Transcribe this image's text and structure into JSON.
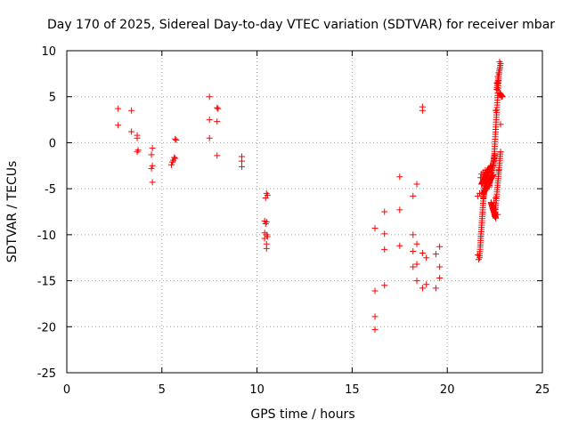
{
  "chart_data": {
    "type": "scatter",
    "title": "Day 170 of 2025, Sidereal Day-to-day VTEC variation (SDTVAR) for receiver mbar",
    "xlabel": "GPS time / hours",
    "ylabel": "SDTVAR / TECUs",
    "xlim": [
      0,
      25
    ],
    "ylim": [
      -25,
      10
    ],
    "xticks": [
      0,
      5,
      10,
      15,
      20,
      25
    ],
    "yticks": [
      10,
      5,
      0,
      -5,
      -10,
      -15,
      -20,
      -25
    ],
    "xtick_labels": [
      "0",
      "5",
      "10",
      "15",
      "20",
      "25"
    ],
    "ytick_labels": [
      "10",
      "5",
      "0",
      "-5",
      "-10",
      "-15",
      "-20",
      "-25"
    ],
    "grid": true,
    "marker": "plus",
    "color": "#ff0000",
    "series": [
      {
        "name": "SDTVAR",
        "points": [
          [
            2.7,
            3.7
          ],
          [
            2.7,
            1.9
          ],
          [
            3.4,
            3.5
          ],
          [
            3.4,
            1.2
          ],
          [
            3.7,
            0.8
          ],
          [
            3.7,
            0.5
          ],
          [
            3.75,
            -0.8
          ],
          [
            3.7,
            -1.0
          ],
          [
            4.5,
            -0.6
          ],
          [
            4.45,
            -1.3
          ],
          [
            4.5,
            -2.5
          ],
          [
            4.45,
            -2.8
          ],
          [
            4.5,
            -4.3
          ],
          [
            5.5,
            -2.4
          ],
          [
            5.55,
            -2.1
          ],
          [
            5.6,
            -1.9
          ],
          [
            5.65,
            -1.6
          ],
          [
            5.7,
            -1.7
          ],
          [
            5.75,
            0.3
          ],
          [
            5.7,
            0.4
          ],
          [
            7.5,
            5.0
          ],
          [
            7.5,
            2.5
          ],
          [
            7.5,
            0.5
          ],
          [
            7.9,
            3.8
          ],
          [
            7.95,
            3.7
          ],
          [
            7.9,
            2.3
          ],
          [
            7.9,
            -1.4
          ],
          [
            9.2,
            -1.5
          ],
          [
            9.2,
            -2.0
          ],
          [
            9.2,
            -2.6
          ],
          [
            10.4,
            -8.5
          ],
          [
            10.45,
            -8.8
          ],
          [
            10.5,
            -8.6
          ],
          [
            10.5,
            -5.5
          ],
          [
            10.55,
            -5.7
          ],
          [
            10.45,
            -6.0
          ],
          [
            10.4,
            -9.8
          ],
          [
            10.5,
            -10.0
          ],
          [
            10.55,
            -10.2
          ],
          [
            10.4,
            -10.4
          ],
          [
            10.5,
            -11.0
          ],
          [
            10.5,
            -11.5
          ],
          [
            16.2,
            -9.3
          ],
          [
            16.2,
            -16.1
          ],
          [
            16.2,
            -18.9
          ],
          [
            16.2,
            -20.3
          ],
          [
            16.7,
            -7.5
          ],
          [
            16.7,
            -9.9
          ],
          [
            16.7,
            -11.6
          ],
          [
            16.7,
            -15.5
          ],
          [
            17.5,
            -3.7
          ],
          [
            17.5,
            -7.3
          ],
          [
            17.5,
            -11.2
          ],
          [
            18.2,
            -5.8
          ],
          [
            18.2,
            -10.0
          ],
          [
            18.2,
            -11.8
          ],
          [
            18.2,
            -13.5
          ],
          [
            18.4,
            -4.5
          ],
          [
            18.4,
            -11.0
          ],
          [
            18.4,
            -13.2
          ],
          [
            18.4,
            -15.0
          ],
          [
            18.7,
            3.9
          ],
          [
            18.7,
            3.5
          ],
          [
            18.7,
            -12.0
          ],
          [
            18.7,
            -15.8
          ],
          [
            18.9,
            -12.5
          ],
          [
            18.9,
            -15.4
          ],
          [
            19.4,
            -12.1
          ],
          [
            19.4,
            -15.8
          ],
          [
            19.6,
            -11.3
          ],
          [
            19.6,
            -13.5
          ],
          [
            19.6,
            -14.7
          ],
          [
            21.6,
            -12.2
          ],
          [
            21.65,
            -12.7
          ],
          [
            21.7,
            -12.5
          ],
          [
            21.6,
            -5.8
          ],
          [
            21.7,
            -5.5
          ],
          [
            21.75,
            -3.8
          ],
          [
            21.8,
            -3.4
          ],
          [
            21.9,
            -3.2
          ],
          [
            22.0,
            -3.6
          ],
          [
            22.1,
            -3.0
          ],
          [
            22.2,
            -3.3
          ],
          [
            22.3,
            -2.9
          ],
          [
            22.4,
            -2.5
          ],
          [
            22.5,
            -1.7
          ],
          [
            22.55,
            3.5
          ],
          [
            22.6,
            6.5
          ],
          [
            22.65,
            7.2
          ],
          [
            22.7,
            7.6
          ],
          [
            22.75,
            8.8
          ],
          [
            22.75,
            8.0
          ],
          [
            22.8,
            5.2
          ],
          [
            22.85,
            5.0
          ],
          [
            22.8,
            2.0
          ],
          [
            22.45,
            -6.5
          ],
          [
            22.5,
            -7.2
          ],
          [
            22.5,
            -8.0
          ],
          [
            22.65,
            -7.8
          ],
          [
            22.55,
            -6.0
          ],
          [
            22.8,
            -1.0
          ],
          [
            22.7,
            -3.0
          ]
        ]
      }
    ],
    "dense_segments": [
      {
        "x_start": 21.7,
        "x_end": 22.0,
        "y_start": -12.3,
        "y_end": -3.0,
        "count": 40
      },
      {
        "x_start": 21.8,
        "x_end": 22.3,
        "y_start": -4.5,
        "y_end": -2.5,
        "count": 40
      },
      {
        "x_start": 21.9,
        "x_end": 22.4,
        "y_start": -5.5,
        "y_end": -3.5,
        "count": 30
      },
      {
        "x_start": 22.2,
        "x_end": 22.5,
        "y_start": -4.8,
        "y_end": -1.2,
        "count": 25
      },
      {
        "x_start": 22.3,
        "x_end": 22.55,
        "y_start": -6.5,
        "y_end": -8.2,
        "count": 20
      },
      {
        "x_start": 22.45,
        "x_end": 22.7,
        "y_start": -2.0,
        "y_end": 7.0,
        "count": 35
      },
      {
        "x_start": 22.5,
        "x_end": 22.8,
        "y_start": -8.0,
        "y_end": -1.0,
        "count": 30
      },
      {
        "x_start": 22.6,
        "x_end": 22.8,
        "y_start": 5.8,
        "y_end": 8.6,
        "count": 15
      },
      {
        "x_start": 22.75,
        "x_end": 22.9,
        "y_start": 5.4,
        "y_end": 5.0,
        "count": 8
      },
      {
        "x_start": 21.9,
        "x_end": 22.1,
        "y_start": -6.0,
        "y_end": -3.0,
        "count": 15
      }
    ]
  }
}
